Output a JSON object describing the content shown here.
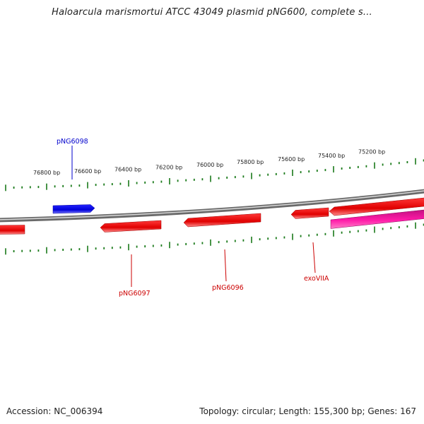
{
  "title": "Haloarcula marismortui ATCC 43049 plasmid pNG600, complete s...",
  "footer": {
    "accession": "Accession: NC_006394",
    "summary": "Topology: circular; Length: 155,300 bp; Genes: 167"
  },
  "colors": {
    "backbone": "#808080",
    "tick": "#1a7a1a",
    "forward_gene": "#0000e6",
    "reverse_gene": "#e60000",
    "highlight_gene": "#e6149e"
  },
  "scale_labels": [
    "76800 bp",
    "76600 bp",
    "76400 bp",
    "76200 bp",
    "76000 bp",
    "75800 bp",
    "75600 bp",
    "75400 bp",
    "75200 bp"
  ],
  "labeled_genes": [
    "pNG6098",
    "pNG6097",
    "pNG6096",
    "exoVIIA"
  ]
}
